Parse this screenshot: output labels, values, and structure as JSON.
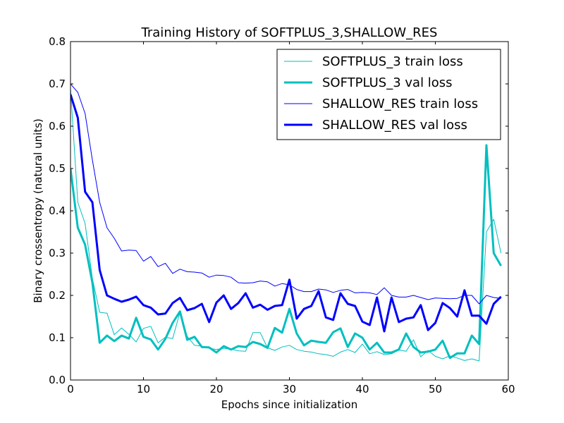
{
  "chart_data": {
    "type": "line",
    "title": "Training History of SOFTPLUS_3,SHALLOW_RES",
    "xlabel": "Epochs since initialization",
    "ylabel": "Binary crossentropy (natural units)",
    "xlim": [
      0,
      60
    ],
    "ylim": [
      0.0,
      0.8
    ],
    "xticks": [
      0,
      10,
      20,
      30,
      40,
      50,
      60
    ],
    "xtick_labels": [
      "0",
      "10",
      "20",
      "30",
      "40",
      "50",
      "60"
    ],
    "yticks": [
      0.0,
      0.1,
      0.2,
      0.3,
      0.4,
      0.5,
      0.6,
      0.7,
      0.8
    ],
    "ytick_labels": [
      "0.0",
      "0.1",
      "0.2",
      "0.3",
      "0.4",
      "0.5",
      "0.6",
      "0.7",
      "0.8"
    ],
    "grid": false,
    "legend_position": "top-right",
    "x": [
      0,
      1,
      2,
      3,
      4,
      5,
      6,
      7,
      8,
      9,
      10,
      11,
      12,
      13,
      14,
      15,
      16,
      17,
      18,
      19,
      20,
      21,
      22,
      23,
      24,
      25,
      26,
      27,
      28,
      29,
      30,
      31,
      32,
      33,
      34,
      35,
      36,
      37,
      38,
      39,
      40,
      41,
      42,
      43,
      44,
      45,
      46,
      47,
      48,
      49,
      50,
      51,
      52,
      53,
      54,
      55,
      56,
      57,
      58,
      59
    ],
    "series": [
      {
        "name": "SOFTPLUS_3 train loss",
        "color": "#00bfbf",
        "linewidth": 1,
        "values": [
          0.69,
          0.42,
          0.37,
          0.24,
          0.16,
          0.158,
          0.107,
          0.123,
          0.108,
          0.09,
          0.122,
          0.127,
          0.088,
          0.101,
          0.098,
          0.16,
          0.103,
          0.082,
          0.08,
          0.075,
          0.072,
          0.075,
          0.073,
          0.069,
          0.068,
          0.112,
          0.112,
          0.076,
          0.07,
          0.078,
          0.082,
          0.072,
          0.068,
          0.066,
          0.062,
          0.06,
          0.056,
          0.066,
          0.072,
          0.065,
          0.085,
          0.062,
          0.067,
          0.06,
          0.062,
          0.071,
          0.068,
          0.095,
          0.055,
          0.07,
          0.056,
          0.05,
          0.057,
          0.052,
          0.046,
          0.05,
          0.045,
          0.35,
          0.38,
          0.3
        ]
      },
      {
        "name": "SOFTPLUS_3 val loss",
        "color": "#00bfbf",
        "linewidth": 3,
        "values": [
          0.5,
          0.36,
          0.32,
          0.23,
          0.088,
          0.105,
          0.092,
          0.105,
          0.098,
          0.147,
          0.102,
          0.096,
          0.072,
          0.097,
          0.135,
          0.162,
          0.095,
          0.102,
          0.078,
          0.077,
          0.065,
          0.08,
          0.072,
          0.08,
          0.078,
          0.09,
          0.085,
          0.076,
          0.123,
          0.112,
          0.168,
          0.11,
          0.082,
          0.093,
          0.09,
          0.088,
          0.113,
          0.122,
          0.078,
          0.11,
          0.1,
          0.072,
          0.088,
          0.065,
          0.065,
          0.072,
          0.11,
          0.078,
          0.065,
          0.067,
          0.072,
          0.093,
          0.052,
          0.063,
          0.063,
          0.105,
          0.085,
          0.555,
          0.3,
          0.27
        ]
      },
      {
        "name": "SHALLOW_RES train loss",
        "color": "#0000ff",
        "linewidth": 1,
        "values": [
          0.7,
          0.68,
          0.63,
          0.52,
          0.42,
          0.36,
          0.335,
          0.305,
          0.307,
          0.306,
          0.281,
          0.292,
          0.268,
          0.276,
          0.252,
          0.262,
          0.256,
          0.255,
          0.253,
          0.243,
          0.248,
          0.247,
          0.243,
          0.23,
          0.229,
          0.23,
          0.234,
          0.232,
          0.222,
          0.228,
          0.225,
          0.214,
          0.209,
          0.209,
          0.215,
          0.213,
          0.207,
          0.212,
          0.214,
          0.206,
          0.207,
          0.206,
          0.202,
          0.218,
          0.2,
          0.196,
          0.196,
          0.2,
          0.195,
          0.19,
          0.194,
          0.193,
          0.192,
          0.193,
          0.2,
          0.2,
          0.18,
          0.2,
          0.195,
          0.193
        ]
      },
      {
        "name": "SHALLOW_RES val loss",
        "color": "#0000ff",
        "linewidth": 3,
        "values": [
          0.675,
          0.62,
          0.445,
          0.42,
          0.26,
          0.2,
          0.192,
          0.185,
          0.19,
          0.197,
          0.177,
          0.171,
          0.155,
          0.157,
          0.182,
          0.194,
          0.165,
          0.17,
          0.18,
          0.137,
          0.183,
          0.2,
          0.168,
          0.182,
          0.205,
          0.171,
          0.178,
          0.166,
          0.175,
          0.177,
          0.237,
          0.145,
          0.168,
          0.175,
          0.21,
          0.148,
          0.142,
          0.205,
          0.18,
          0.175,
          0.138,
          0.13,
          0.195,
          0.115,
          0.195,
          0.137,
          0.145,
          0.148,
          0.177,
          0.118,
          0.135,
          0.182,
          0.17,
          0.15,
          0.212,
          0.152,
          0.152,
          0.133,
          0.18,
          0.197
        ]
      }
    ]
  }
}
